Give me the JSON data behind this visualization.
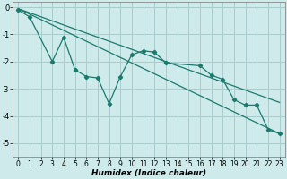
{
  "xlabel": "Humidex (Indice chaleur)",
  "bg_color": "#ceeaea",
  "grid_color": "#aacccc",
  "line_color": "#1a7a6e",
  "x_jagged": [
    0,
    1,
    3,
    4,
    5,
    6,
    7,
    8,
    9,
    10,
    11,
    12,
    13,
    16,
    17,
    18,
    19,
    20,
    21,
    22,
    23
  ],
  "y_jagged": [
    -0.1,
    -0.35,
    -2.0,
    -1.1,
    -2.3,
    -2.55,
    -2.6,
    -3.55,
    -2.55,
    -1.75,
    -1.6,
    -1.65,
    -2.05,
    -2.15,
    -2.5,
    -2.65,
    -3.4,
    -3.6,
    -3.6,
    -4.5,
    -4.65
  ],
  "trend1_x": [
    0,
    23
  ],
  "trend1_y": [
    -0.05,
    -3.5
  ],
  "trend2_x": [
    0,
    23
  ],
  "trend2_y": [
    -0.05,
    -4.65
  ],
  "ylim": [
    -5.5,
    0.2
  ],
  "xlim": [
    -0.5,
    23.5
  ],
  "yticks": [
    0,
    -1,
    -2,
    -3,
    -4,
    -5
  ],
  "xticks": [
    0,
    1,
    2,
    3,
    4,
    5,
    6,
    7,
    8,
    9,
    10,
    11,
    12,
    13,
    14,
    15,
    16,
    17,
    18,
    19,
    20,
    21,
    22,
    23
  ],
  "xlabel_fontsize": 6.5,
  "tick_fontsize": 5.5
}
